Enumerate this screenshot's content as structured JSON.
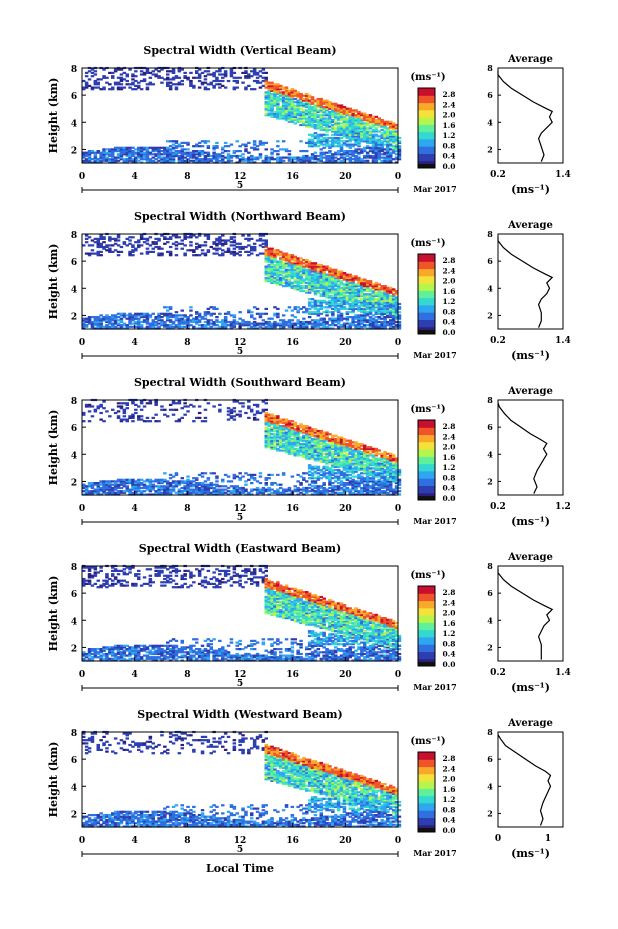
{
  "chart_data": [
    {
      "type": "heatmap",
      "title": "Spectral Width (Vertical Beam)",
      "ylabel": "Height (km)",
      "yticks": [
        "2",
        "4",
        "6",
        "8"
      ],
      "ylim": [
        1,
        8
      ],
      "xticks": [
        "0",
        "4",
        "8",
        "12",
        "16",
        "20",
        "0"
      ],
      "xlim": [
        0,
        24
      ],
      "date_marker": "5",
      "month_label": "Mar 2017",
      "colorbar": {
        "unit": "(ms⁻¹)",
        "ticks": [
          "2.8",
          "2.4",
          "2.0",
          "1.6",
          "1.2",
          "0.8",
          "0.4",
          "0.0"
        ]
      },
      "average": {
        "title": "Average",
        "xlabel": "(ms⁻¹)",
        "xticks": [
          "0.2",
          "1.4"
        ],
        "yticks": [
          "2",
          "4",
          "6",
          "8"
        ],
        "xlim": [
          0.2,
          1.4
        ],
        "profile": [
          [
            1.1,
            1.0
          ],
          [
            1.6,
            1.05
          ],
          [
            2.2,
            1.0
          ],
          [
            2.8,
            0.95
          ],
          [
            3.2,
            1.0
          ],
          [
            3.6,
            1.1
          ],
          [
            4.0,
            1.2
          ],
          [
            4.4,
            1.15
          ],
          [
            4.8,
            1.2
          ],
          [
            5.1,
            1.05
          ],
          [
            5.5,
            0.85
          ],
          [
            6.0,
            0.65
          ],
          [
            6.5,
            0.45
          ],
          [
            7.0,
            0.3
          ],
          [
            7.5,
            0.2
          ],
          [
            7.8,
            0.2
          ]
        ]
      }
    },
    {
      "type": "heatmap",
      "title": "Spectral Width (Northward Beam)",
      "ylabel": "Height (km)",
      "yticks": [
        "2",
        "4",
        "6",
        "8"
      ],
      "ylim": [
        1,
        8
      ],
      "xticks": [
        "0",
        "4",
        "8",
        "12",
        "16",
        "20",
        "0"
      ],
      "xlim": [
        0,
        24
      ],
      "date_marker": "5",
      "month_label": "Mar 2017",
      "colorbar": {
        "unit": "(ms⁻¹)",
        "ticks": [
          "2.8",
          "2.4",
          "2.0",
          "1.6",
          "1.2",
          "0.8",
          "0.4",
          "0.0"
        ]
      },
      "average": {
        "title": "Average",
        "xlabel": "(ms⁻¹)",
        "xticks": [
          "0.2",
          "1.4"
        ],
        "yticks": [
          "2",
          "4",
          "6",
          "8"
        ],
        "xlim": [
          0.2,
          1.4
        ],
        "profile": [
          [
            1.1,
            0.95
          ],
          [
            1.6,
            1.0
          ],
          [
            2.2,
            1.0
          ],
          [
            2.8,
            0.95
          ],
          [
            3.2,
            1.0
          ],
          [
            3.6,
            1.1
          ],
          [
            4.0,
            1.15
          ],
          [
            4.4,
            1.1
          ],
          [
            4.8,
            1.2
          ],
          [
            5.1,
            1.05
          ],
          [
            5.5,
            0.85
          ],
          [
            6.0,
            0.65
          ],
          [
            6.5,
            0.45
          ],
          [
            7.0,
            0.3
          ],
          [
            7.5,
            0.2
          ],
          [
            7.8,
            0.2
          ]
        ]
      }
    },
    {
      "type": "heatmap",
      "title": "Spectral Width (Southward Beam)",
      "ylabel": "Height (km)",
      "yticks": [
        "2",
        "4",
        "6",
        "8"
      ],
      "ylim": [
        1,
        8
      ],
      "xticks": [
        "0",
        "4",
        "8",
        "12",
        "16",
        "20",
        "0"
      ],
      "xlim": [
        0,
        24
      ],
      "date_marker": "5",
      "month_label": "Mar 2017",
      "colorbar": {
        "unit": "(ms⁻¹)",
        "ticks": [
          "2.8",
          "2.4",
          "2.0",
          "1.6",
          "1.2",
          "0.8",
          "0.4",
          "0.0"
        ]
      },
      "average": {
        "title": "Average",
        "xlabel": "(ms⁻¹)",
        "xticks": [
          "0.2",
          "1.2"
        ],
        "yticks": [
          "2",
          "4",
          "6",
          "8"
        ],
        "xlim": [
          0.2,
          1.2
        ],
        "profile": [
          [
            1.1,
            0.75
          ],
          [
            1.6,
            0.8
          ],
          [
            2.2,
            0.75
          ],
          [
            2.8,
            0.8
          ],
          [
            3.2,
            0.85
          ],
          [
            3.6,
            0.9
          ],
          [
            4.0,
            0.95
          ],
          [
            4.4,
            0.9
          ],
          [
            4.8,
            0.95
          ],
          [
            5.1,
            0.85
          ],
          [
            5.5,
            0.7
          ],
          [
            6.0,
            0.55
          ],
          [
            6.5,
            0.4
          ],
          [
            7.0,
            0.3
          ],
          [
            7.5,
            0.22
          ],
          [
            7.8,
            0.2
          ]
        ]
      }
    },
    {
      "type": "heatmap",
      "title": "Spectral Width (Eastward Beam)",
      "ylabel": "Height (km)",
      "yticks": [
        "2",
        "4",
        "6",
        "8"
      ],
      "ylim": [
        1,
        8
      ],
      "xticks": [
        "0",
        "4",
        "8",
        "12",
        "16",
        "20",
        "0"
      ],
      "xlim": [
        0,
        24
      ],
      "date_marker": "5",
      "month_label": "Mar 2017",
      "colorbar": {
        "unit": "(ms⁻¹)",
        "ticks": [
          "2.8",
          "2.4",
          "2.0",
          "1.6",
          "1.2",
          "0.8",
          "0.4",
          "0.0"
        ]
      },
      "average": {
        "title": "Average",
        "xlabel": "(ms⁻¹)",
        "xticks": [
          "0.2",
          "1.4"
        ],
        "yticks": [
          "2",
          "4",
          "6",
          "8"
        ],
        "xlim": [
          0.2,
          1.4
        ],
        "profile": [
          [
            1.1,
            1.0
          ],
          [
            1.6,
            1.0
          ],
          [
            2.2,
            1.0
          ],
          [
            2.8,
            0.95
          ],
          [
            3.2,
            1.0
          ],
          [
            3.6,
            1.05
          ],
          [
            4.0,
            1.15
          ],
          [
            4.4,
            1.1
          ],
          [
            4.8,
            1.2
          ],
          [
            5.1,
            1.05
          ],
          [
            5.5,
            0.85
          ],
          [
            6.0,
            0.65
          ],
          [
            6.5,
            0.45
          ],
          [
            7.0,
            0.3
          ],
          [
            7.5,
            0.2
          ],
          [
            7.8,
            0.2
          ]
        ]
      }
    },
    {
      "type": "heatmap",
      "title": "Spectral Width (Westward Beam)",
      "ylabel": "Height (km)",
      "yticks": [
        "2",
        "4",
        "6",
        "8"
      ],
      "ylim": [
        1,
        8
      ],
      "xticks": [
        "0",
        "4",
        "8",
        "12",
        "16",
        "20",
        "0"
      ],
      "xlim": [
        0,
        24
      ],
      "date_marker": "5",
      "month_label": "Mar 2017",
      "xlabel": "Local Time",
      "colorbar": {
        "unit": "(ms⁻¹)",
        "ticks": [
          "2.8",
          "2.4",
          "2.0",
          "1.6",
          "1.2",
          "0.8",
          "0.4",
          "0.0"
        ]
      },
      "average": {
        "title": "Average",
        "xlabel": "(ms⁻¹)",
        "xticks": [
          "0",
          "1"
        ],
        "yticks": [
          "2",
          "4",
          "6",
          "8"
        ],
        "xlim": [
          0,
          1.3
        ],
        "profile": [
          [
            1.1,
            0.85
          ],
          [
            1.6,
            0.9
          ],
          [
            2.2,
            0.85
          ],
          [
            2.8,
            0.9
          ],
          [
            3.2,
            0.95
          ],
          [
            3.6,
            1.0
          ],
          [
            4.0,
            1.05
          ],
          [
            4.4,
            1.0
          ],
          [
            4.8,
            1.05
          ],
          [
            5.1,
            0.95
          ],
          [
            5.5,
            0.75
          ],
          [
            6.0,
            0.55
          ],
          [
            6.5,
            0.35
          ],
          [
            7.0,
            0.15
          ],
          [
            7.5,
            0.05
          ],
          [
            7.8,
            0.0
          ]
        ]
      }
    }
  ],
  "colors": {
    "scale": [
      "#2b1f7a",
      "#2d3fb0",
      "#2f6fe0",
      "#2fa6f0",
      "#33d8d0",
      "#5ef09a",
      "#b6f54a",
      "#f4e23a",
      "#f9a92a",
      "#f0552a",
      "#c8102e"
    ]
  }
}
